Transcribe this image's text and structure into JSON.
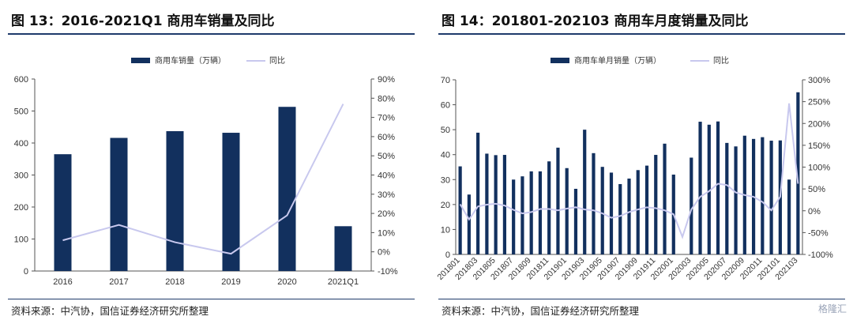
{
  "charts": [
    {
      "header": "图 13：2016-2021Q1 商用车销量及同比",
      "source": "资料来源：中汽协，国信证券经济研究所整理",
      "legend": {
        "bar": "商用车销量（万辆）",
        "line": "同比"
      },
      "left_ticks": [
        "0",
        "100",
        "200",
        "300",
        "400",
        "500",
        "600"
      ],
      "right_ticks": [
        "-10%",
        "0%",
        "10%",
        "20%",
        "30%",
        "40%",
        "50%",
        "60%",
        "70%",
        "80%",
        "90%"
      ],
      "x_labels": [
        "2016",
        "2017",
        "2018",
        "2019",
        "2020",
        "2021Q1"
      ]
    },
    {
      "header": "图 14：201801-202103 商用车月度销量及同比",
      "source": "资料来源：中汽协，国信证券经济研究所整理",
      "legend": {
        "bar": "商用车单月销量（万辆）",
        "line": "同比"
      },
      "left_ticks": [
        "0",
        "10",
        "20",
        "30",
        "40",
        "50",
        "60",
        "70"
      ],
      "right_ticks": [
        "-100%",
        "-50%",
        "0%",
        "50%",
        "100%",
        "150%",
        "200%",
        "250%",
        "300%"
      ],
      "x_labels": [
        "201801",
        "201803",
        "201805",
        "201807",
        "201809",
        "201811",
        "201901",
        "201903",
        "201905",
        "201907",
        "201909",
        "201911",
        "202001",
        "202003",
        "202005",
        "202007",
        "202009",
        "202011",
        "202101",
        "202103"
      ]
    }
  ],
  "watermark": "格隆汇",
  "colors": {
    "bar": "#12305e",
    "line": "#c8c8ee"
  },
  "chart_data": [
    {
      "type": "bar",
      "categories": [
        "2016",
        "2017",
        "2018",
        "2019",
        "2020",
        "2021Q1"
      ],
      "series": [
        {
          "name": "商用车销量（万辆）",
          "axis": "left",
          "kind": "bar",
          "values": [
            365,
            416,
            437,
            432,
            513,
            140
          ]
        },
        {
          "name": "同比",
          "axis": "right",
          "kind": "line",
          "values": [
            0.06,
            0.14,
            0.05,
            -0.01,
            0.19,
            0.77
          ]
        }
      ],
      "ylim_left": [
        0,
        600
      ],
      "ylim_right": [
        -0.1,
        0.9
      ],
      "grid": false,
      "legend_position": "top"
    },
    {
      "type": "bar",
      "categories": [
        "201801",
        "201802",
        "201803",
        "201804",
        "201805",
        "201806",
        "201807",
        "201808",
        "201809",
        "201810",
        "201811",
        "201812",
        "201901",
        "201902",
        "201903",
        "201904",
        "201905",
        "201906",
        "201907",
        "201908",
        "201909",
        "201910",
        "201911",
        "201912",
        "202001",
        "202002",
        "202003",
        "202004",
        "202005",
        "202006",
        "202007",
        "202008",
        "202009",
        "202010",
        "202011",
        "202012",
        "202101",
        "202102",
        "202103"
      ],
      "series": [
        {
          "name": "商用车单月销量（万辆）",
          "axis": "left",
          "kind": "bar",
          "values": [
            35.3,
            24,
            48.8,
            40.4,
            39.8,
            39.9,
            30,
            31.3,
            33.3,
            33.3,
            37.3,
            42.8,
            34.6,
            26.3,
            50,
            40.6,
            35.1,
            32.8,
            28.2,
            30.4,
            33.8,
            35.6,
            39.9,
            44.4,
            32,
            0,
            38.8,
            53.2,
            52,
            53.3,
            44.7,
            43.3,
            47.6,
            46.3,
            47,
            45.6,
            45.7,
            30,
            65
          ]
        },
        {
          "name": "同比",
          "axis": "right",
          "kind": "line",
          "values": [
            0.15,
            -0.2,
            0.1,
            0.14,
            0.16,
            0.12,
            0.02,
            -0.06,
            -0.03,
            0.04,
            0.04,
            0.01,
            0.05,
            0.08,
            0.03,
            0.01,
            -0.06,
            -0.16,
            -0.12,
            -0.03,
            0.03,
            0.08,
            0.06,
            0.01,
            -0.08,
            -0.6,
            0.03,
            0.32,
            0.45,
            0.62,
            0.59,
            0.42,
            0.36,
            0.32,
            0.2,
            0.01,
            0.32,
            2.46,
            0.62
          ]
        }
      ],
      "ylim_left": [
        0,
        70
      ],
      "ylim_right": [
        -1.0,
        3.0
      ],
      "grid": false,
      "legend_position": "top"
    }
  ]
}
